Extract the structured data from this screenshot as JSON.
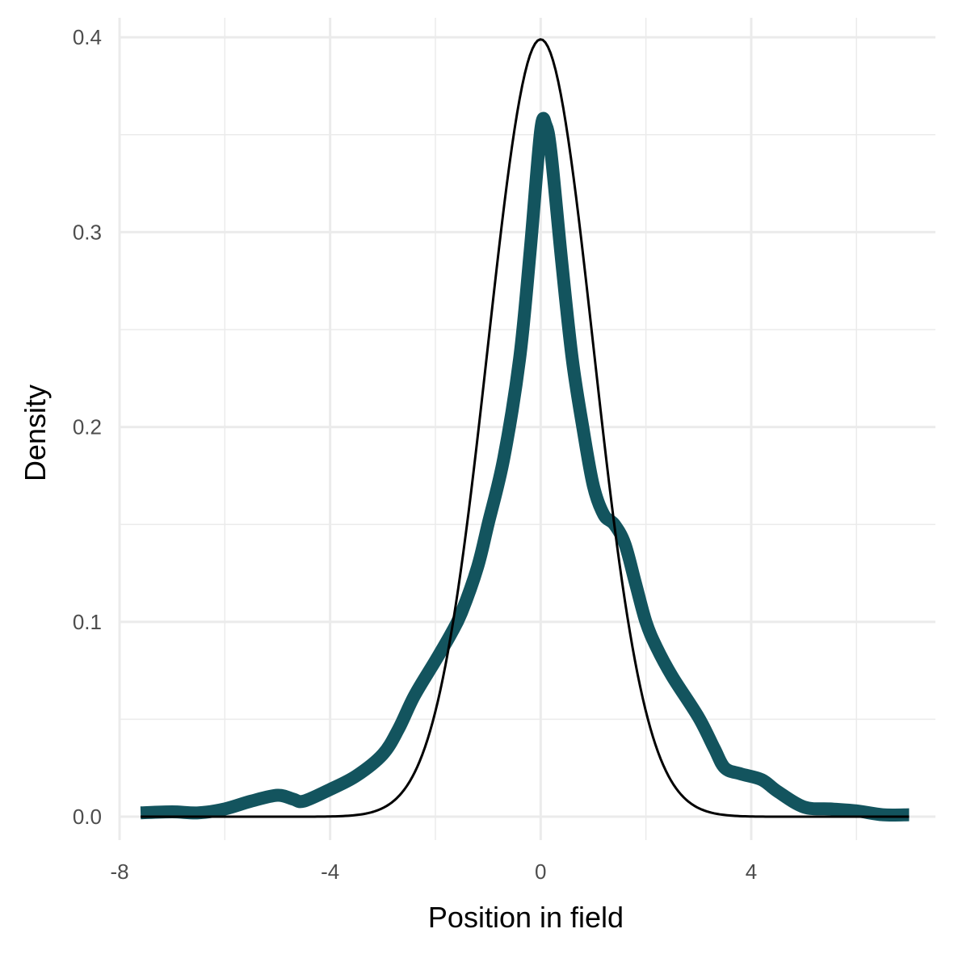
{
  "chart_data": {
    "type": "line",
    "title": "",
    "xlabel": "Position in field",
    "ylabel": "Density",
    "xlim": [
      -8,
      7.5
    ],
    "ylim": [
      -0.012,
      0.41
    ],
    "x_ticks": [
      -8,
      -4,
      0,
      4
    ],
    "x_tick_labels": [
      "-8",
      "-4",
      "0",
      "4"
    ],
    "y_ticks": [
      0.0,
      0.1,
      0.2,
      0.3,
      0.4
    ],
    "y_tick_labels": [
      "0.0",
      "0.1",
      "0.2",
      "0.3",
      "0.4"
    ],
    "grid": true,
    "legend": "none",
    "series": [
      {
        "color": "#13545e",
        "style": "thick",
        "x": [
          -7.6,
          -7.0,
          -6.5,
          -6.0,
          -5.5,
          -5.0,
          -4.7,
          -4.5,
          -4.0,
          -3.5,
          -3.0,
          -2.7,
          -2.4,
          -2.0,
          -1.7,
          -1.5,
          -1.2,
          -1.0,
          -0.7,
          -0.4,
          -0.2,
          0.0,
          0.1,
          0.2,
          0.4,
          0.6,
          0.8,
          1.0,
          1.2,
          1.4,
          1.6,
          1.8,
          2.0,
          2.2,
          2.5,
          3.0,
          3.3,
          3.5,
          3.8,
          4.2,
          4.5,
          5.0,
          5.5,
          6.0,
          6.5,
          7.0
        ],
        "y": [
          0.002,
          0.0025,
          0.002,
          0.004,
          0.008,
          0.011,
          0.009,
          0.008,
          0.014,
          0.021,
          0.032,
          0.045,
          0.062,
          0.08,
          0.094,
          0.105,
          0.128,
          0.15,
          0.184,
          0.235,
          0.29,
          0.352,
          0.355,
          0.34,
          0.285,
          0.235,
          0.2,
          0.17,
          0.155,
          0.15,
          0.14,
          0.12,
          0.1,
          0.087,
          0.072,
          0.051,
          0.035,
          0.025,
          0.022,
          0.019,
          0.013,
          0.005,
          0.004,
          0.003,
          0.001,
          0.001
        ]
      },
      {
        "color": "#000000",
        "style": "thin",
        "curve": "normal",
        "mean": 0,
        "sd": 1,
        "x_range": [
          -7.6,
          7.0
        ]
      }
    ]
  }
}
